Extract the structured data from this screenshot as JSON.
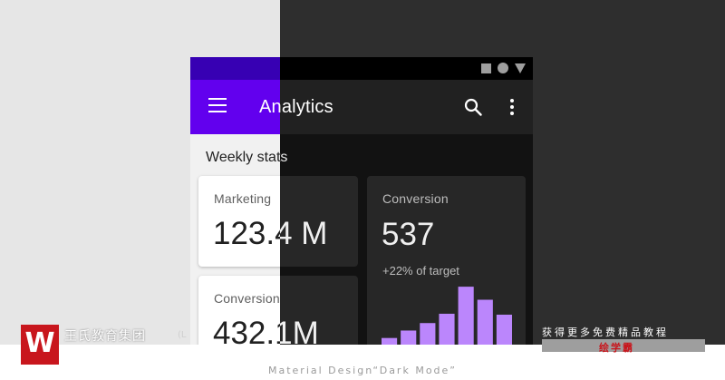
{
  "app": {
    "title": "Analytics"
  },
  "section": {
    "title": "Weekly stats"
  },
  "cards": {
    "marketing": {
      "label": "Marketing",
      "value": "123.4 M"
    },
    "conversion_total": {
      "label": "Conversion",
      "value": "432.1M"
    },
    "conversion": {
      "label": "Conversion",
      "value": "537",
      "sub": "+22% of target"
    }
  },
  "chart": {
    "bar_levels": [
      0.11,
      0.19,
      0.27,
      0.37,
      0.66,
      0.52,
      0.36
    ],
    "bar_color": "#bb86fc"
  },
  "colors": {
    "primary": "#6200ee",
    "primary_dark": "#3700b3",
    "dark_surface": "#121212",
    "accent": "#bb86fc"
  },
  "icons": {
    "menu": "menu-icon",
    "search": "search-icon",
    "more": "more-vert-icon"
  },
  "watermark": {
    "org": "王氏教育集团",
    "org_sub": "(L",
    "promo": "获得更多免费精品教程",
    "brand": "绘学霸"
  },
  "caption": "Material Design“Dark Mode”"
}
